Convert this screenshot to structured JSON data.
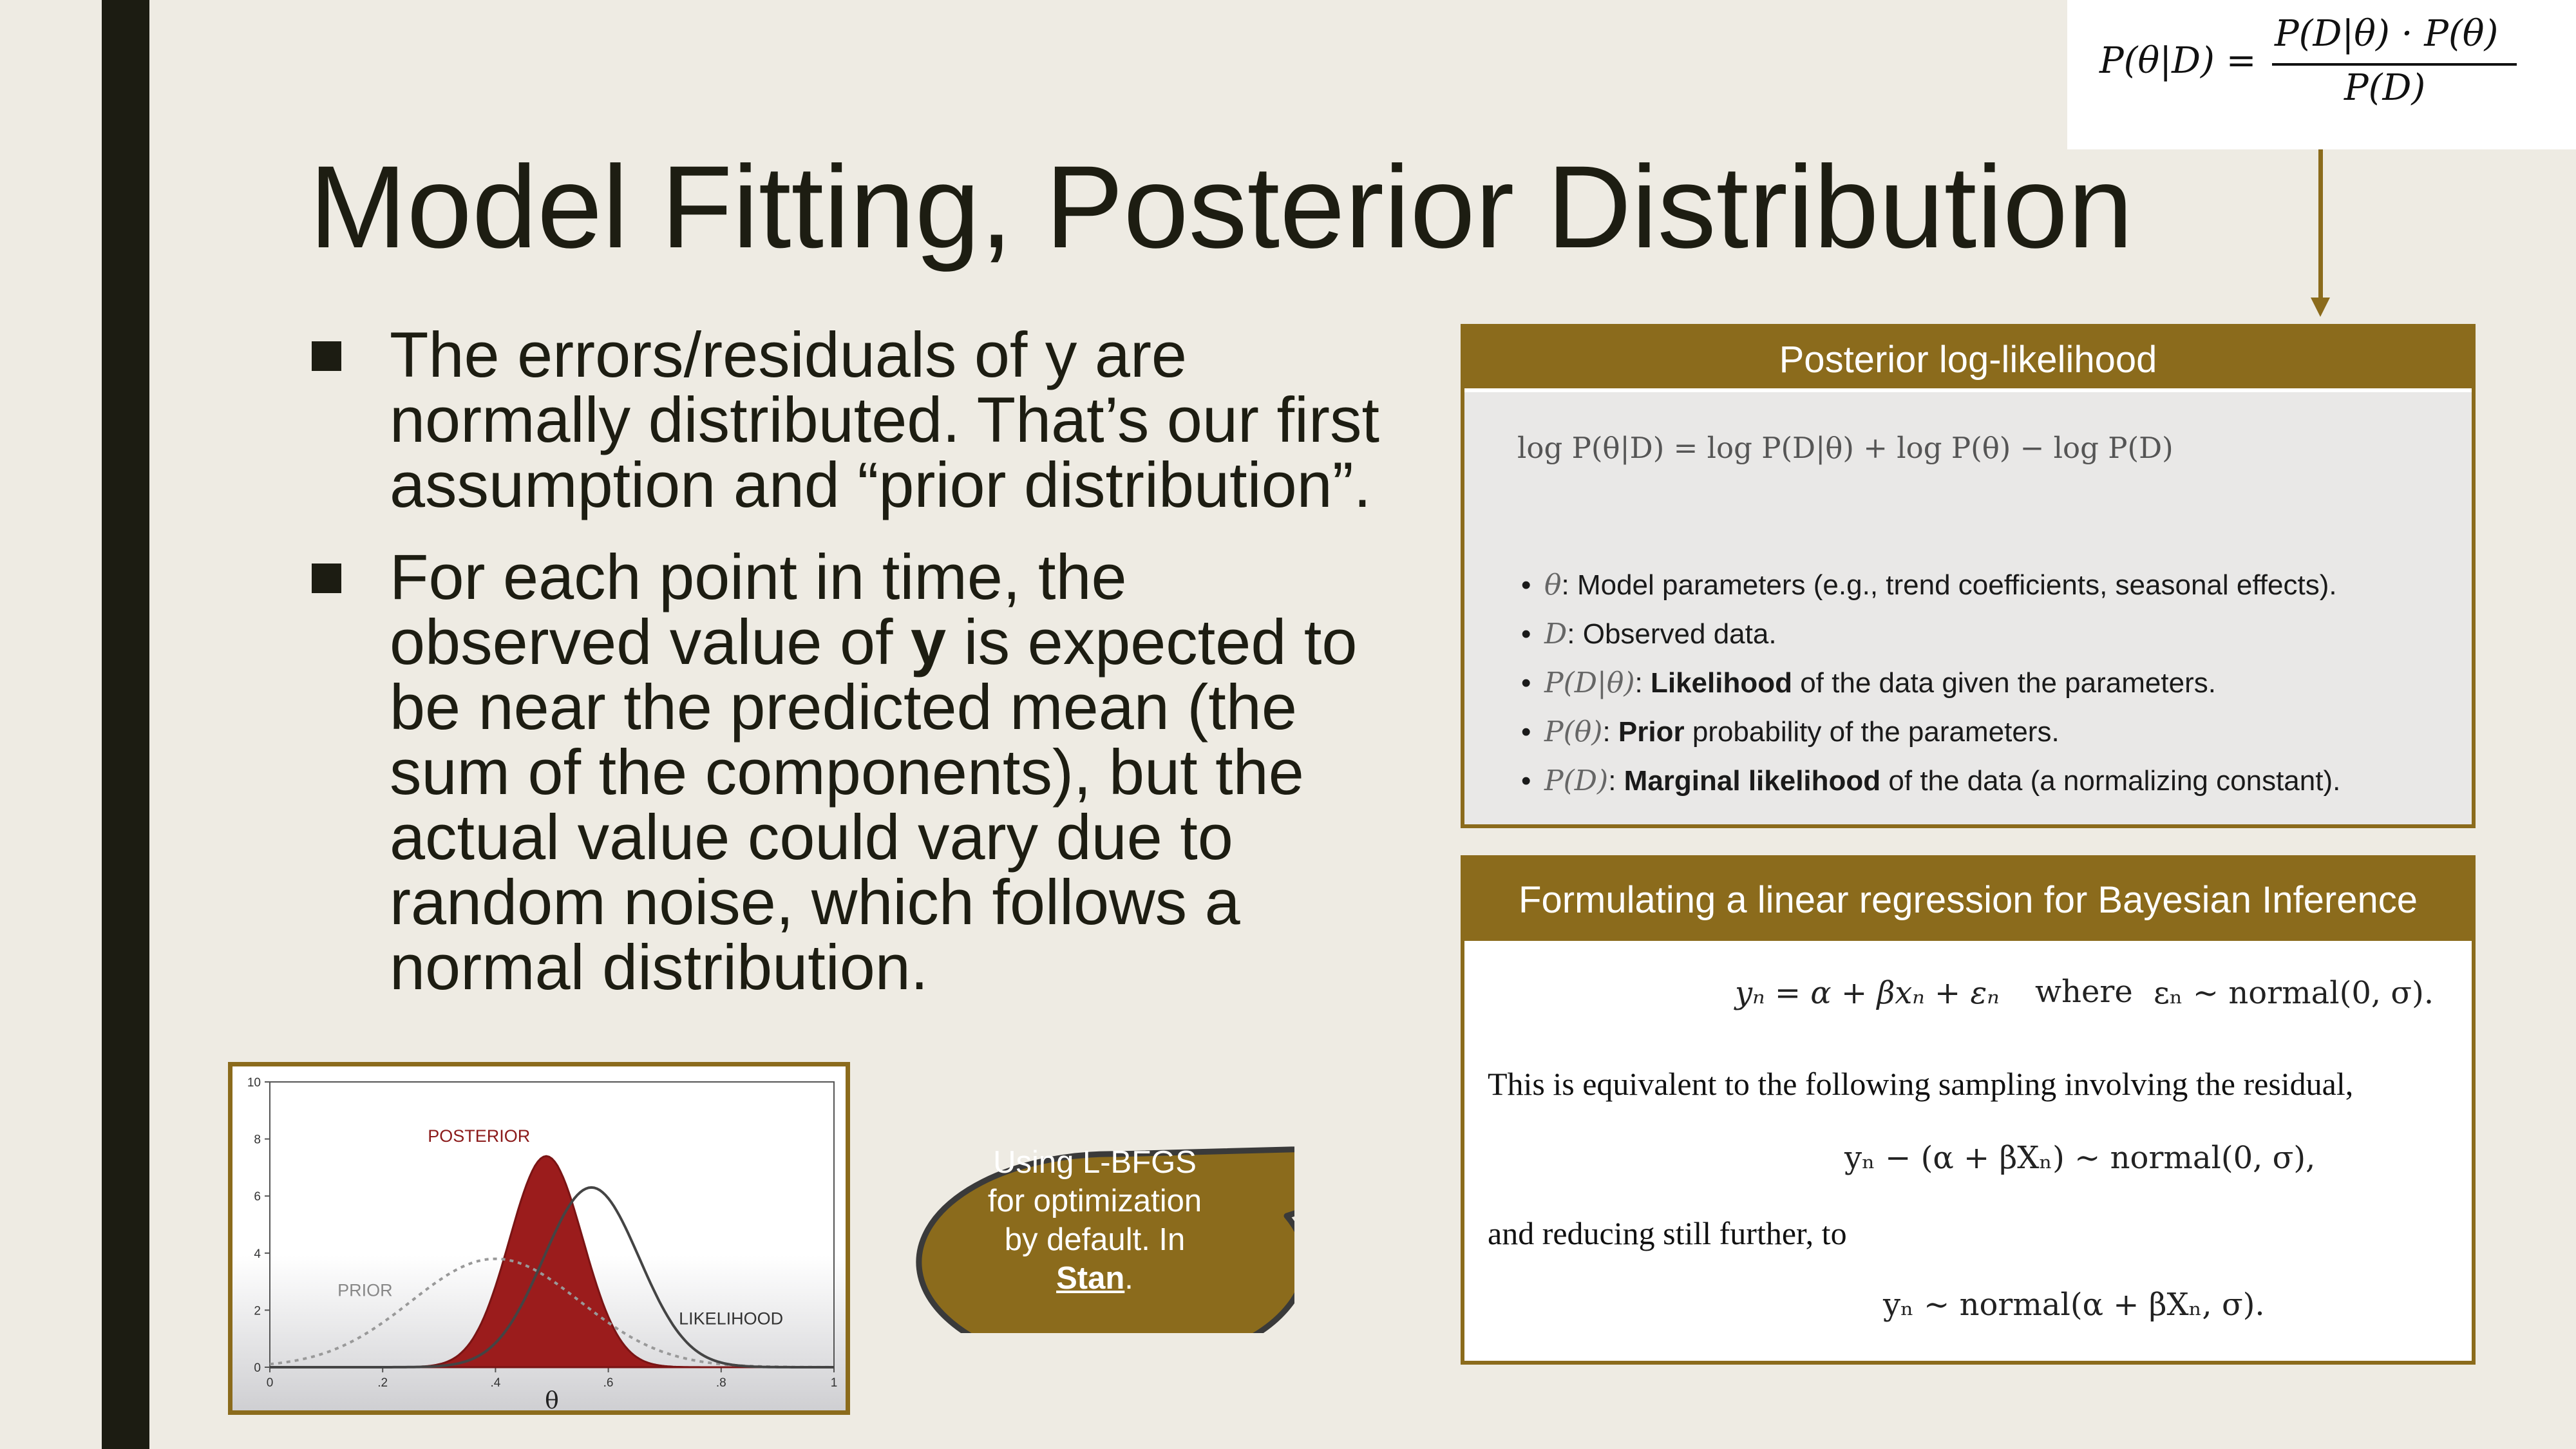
{
  "slide": {
    "title": "Model Fitting, Posterior Distribution",
    "bullets": [
      {
        "text": "The errors/residuals of y are normally distributed. That’s our first assumption and “prior distribution”."
      },
      {
        "pre": "For each point in time, the observed value of ",
        "bold": "y",
        "post": " is expected to be near the predicted mean (the sum of the components), but the actual value could vary due to random noise, which follows a normal distribution."
      }
    ]
  },
  "bayes_formula": {
    "lhs": "P(θ|D) =",
    "numerator": "P(D|θ) · P(θ)",
    "denominator": "P(D)"
  },
  "panel1": {
    "header": "Posterior log-likelihood",
    "equation": "log P(θ|D) = log P(D|θ) + log P(θ) − log P(D)",
    "items": [
      {
        "sym": "θ",
        "pre": ": Model parameters (e.g., trend coefficients, seasonal effects).",
        "bold": "",
        "post": ""
      },
      {
        "sym": "D",
        "pre": ": Observed data.",
        "bold": "",
        "post": ""
      },
      {
        "sym": "P(D|θ)",
        "pre": ": ",
        "bold": "Likelihood",
        "post": " of the data given the parameters."
      },
      {
        "sym": "P(θ)",
        "pre": ": ",
        "bold": "Prior",
        "post": " probability of the parameters."
      },
      {
        "sym": "P(D)",
        "pre": ": ",
        "bold": "Marginal likelihood",
        "post": " of the data (a normalizing constant)."
      }
    ]
  },
  "panel2": {
    "header": "Formulating a linear regression for Bayesian Inference",
    "eq1": "yₙ = α + βxₙ + εₙ",
    "eq1_where": "where",
    "eq1_noise": "εₙ ∼ normal(0, σ).",
    "text1": "This is equivalent to the following sampling involving the residual,",
    "eq2": "yₙ − (α + βXₙ) ∼ normal(0, σ),",
    "text2": "and reducing still further, to",
    "eq3": "yₙ ∼ normal(α + βXₙ, σ)."
  },
  "callout": {
    "line1": "Using L-BFGS",
    "line2": "for optimization",
    "line3": "by default. In",
    "link": "Stan",
    "end": "."
  },
  "chart_data": {
    "type": "line",
    "xlabel": "θ",
    "xticks": [
      "0",
      ".2",
      ".4",
      ".6",
      ".8",
      "1"
    ],
    "yticks": [
      "0",
      "2",
      "4",
      "6",
      "8",
      "10"
    ],
    "xlim": [
      0,
      1
    ],
    "ylim": [
      0,
      10
    ],
    "series": [
      {
        "name": "PRIOR",
        "style": "dotted",
        "color": "#999999",
        "mean": 0.4,
        "sd": 0.15,
        "peak": 3.8
      },
      {
        "name": "LIKELIHOOD",
        "style": "solid",
        "color": "#444444",
        "mean": 0.57,
        "sd": 0.085,
        "peak": 6.3
      },
      {
        "name": "POSTERIOR",
        "style": "filled",
        "color": "#9b1c1c",
        "mean": 0.49,
        "sd": 0.065,
        "peak": 7.4
      }
    ],
    "labels": {
      "posterior": "POSTERIOR",
      "prior": "PRIOR",
      "likelihood": "LIKELIHOOD"
    }
  }
}
